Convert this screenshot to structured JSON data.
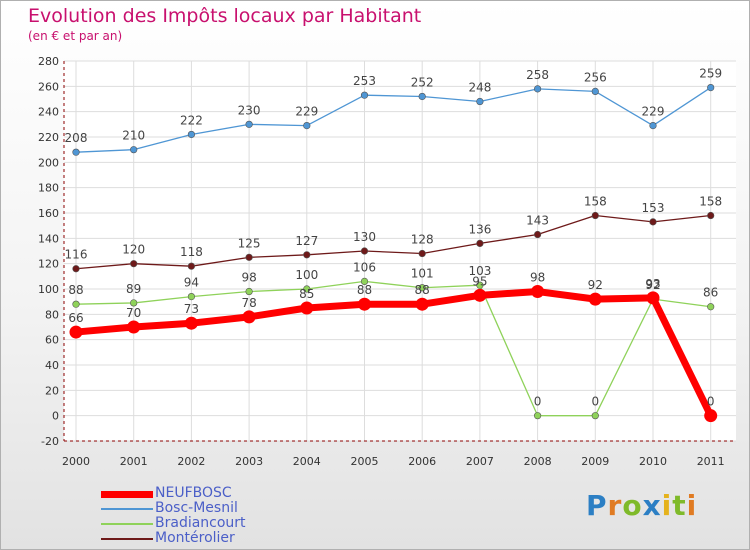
{
  "header": {
    "title": "Evolution des Impôts locaux par Habitant",
    "subtitle": "(en € et par an)"
  },
  "logo": {
    "text": "Proxiti",
    "letters": [
      {
        "ch": "P",
        "color": "#2c7fc4"
      },
      {
        "ch": "r",
        "color": "#e07b22"
      },
      {
        "ch": "o",
        "color": "#7fba2a"
      },
      {
        "ch": "x",
        "color": "#2c7fc4"
      },
      {
        "ch": "i",
        "color": "#e5b21c"
      },
      {
        "ch": "t",
        "color": "#7fba2a"
      },
      {
        "ch": "i",
        "color": "#e07b22"
      }
    ]
  },
  "chart_data": {
    "type": "line",
    "title": "Evolution des Impôts locaux par Habitant",
    "subtitle": "(en € et par an)",
    "xlabel": "",
    "ylabel": "",
    "x": [
      "2000",
      "2001",
      "2002",
      "2003",
      "2004",
      "2005",
      "2006",
      "2007",
      "2008",
      "2009",
      "2010",
      "2011"
    ],
    "ylim": [
      -20,
      280
    ],
    "yticks": [
      "-20",
      "0",
      "20",
      "40",
      "60",
      "80",
      "100",
      "120",
      "140",
      "160",
      "180",
      "200",
      "220",
      "240",
      "260",
      "280"
    ],
    "grid": true,
    "legend_position": "bottom-left",
    "series": [
      {
        "name": "NEUFBOSC",
        "color": "#ff0000",
        "values": [
          66,
          70,
          73,
          78,
          85,
          88,
          88,
          95,
          98,
          92,
          93,
          0
        ],
        "labels": [
          "66",
          "70",
          "73",
          "78",
          "85",
          "88",
          "88",
          "95",
          "98",
          "92",
          "93",
          "0"
        ]
      },
      {
        "name": "Bosc-Mesnil",
        "color": "#4f96d4",
        "values": [
          208,
          210,
          222,
          230,
          229,
          253,
          252,
          248,
          258,
          256,
          229,
          259
        ],
        "labels": [
          "208",
          "210",
          "222",
          "230",
          "229",
          "253",
          "252",
          "248",
          "258",
          "256",
          "229",
          "259"
        ]
      },
      {
        "name": "Bradiancourt",
        "color": "#8fd25a",
        "values": [
          88,
          89,
          94,
          98,
          100,
          106,
          101,
          103,
          0,
          0,
          92,
          86
        ],
        "labels": [
          "88",
          "89",
          "94",
          "98",
          "100",
          "106",
          "101",
          "103",
          "0",
          "0",
          "92",
          "86"
        ]
      },
      {
        "name": "Montérolier",
        "color": "#6e1a1a",
        "values": [
          116,
          120,
          118,
          125,
          127,
          130,
          128,
          136,
          143,
          158,
          153,
          158
        ],
        "labels": [
          "116",
          "120",
          "118",
          "125",
          "127",
          "130",
          "128",
          "136",
          "143",
          "158",
          "153",
          "158"
        ]
      }
    ]
  }
}
